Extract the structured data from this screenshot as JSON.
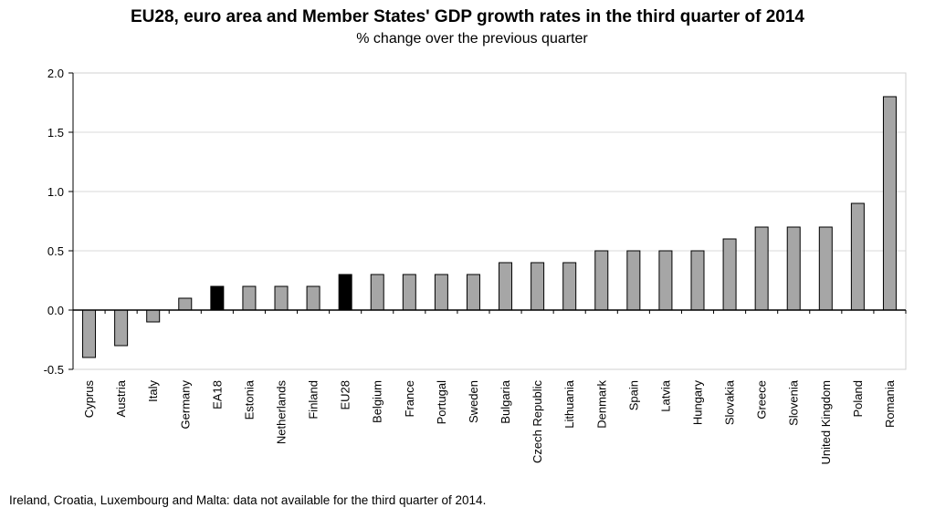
{
  "chart_data": {
    "type": "bar",
    "title": "EU28, euro area and Member States' GDP growth rates in the third quarter of 2014",
    "subtitle": "% change over the previous quarter",
    "xlabel": "",
    "ylabel": "",
    "ylim": [
      -0.5,
      2.0
    ],
    "yticks": [
      "-0.5",
      "0.0",
      "0.5",
      "1.0",
      "1.5",
      "2.0"
    ],
    "grid": true,
    "legend": "none",
    "categories": [
      "Cyprus",
      "Austria",
      "Italy",
      "Germany",
      "EA18",
      "Estonia",
      "Netherlands",
      "Finland",
      "EU28",
      "Belgium",
      "France",
      "Portugal",
      "Sweden",
      "Bulgaria",
      "Czech Republic",
      "Lithuania",
      "Denmark",
      "Spain",
      "Latvia",
      "Hungary",
      "Slovakia",
      "Greece",
      "Slovenia",
      "United Kingdom",
      "Poland",
      "Romania"
    ],
    "values": [
      -0.4,
      -0.3,
      -0.1,
      0.1,
      0.2,
      0.2,
      0.2,
      0.2,
      0.3,
      0.3,
      0.3,
      0.3,
      0.3,
      0.4,
      0.4,
      0.4,
      0.5,
      0.5,
      0.5,
      0.5,
      0.6,
      0.7,
      0.7,
      0.7,
      0.9,
      1.8
    ],
    "highlighted": [
      "EA18",
      "EU28"
    ],
    "colors": {
      "bar": "#a6a6a6",
      "highlight": "#000000",
      "grid": "#d9d9d9"
    }
  },
  "footnote": "Ireland, Croatia, Luxembourg and Malta: data not available for the third quarter of 2014."
}
